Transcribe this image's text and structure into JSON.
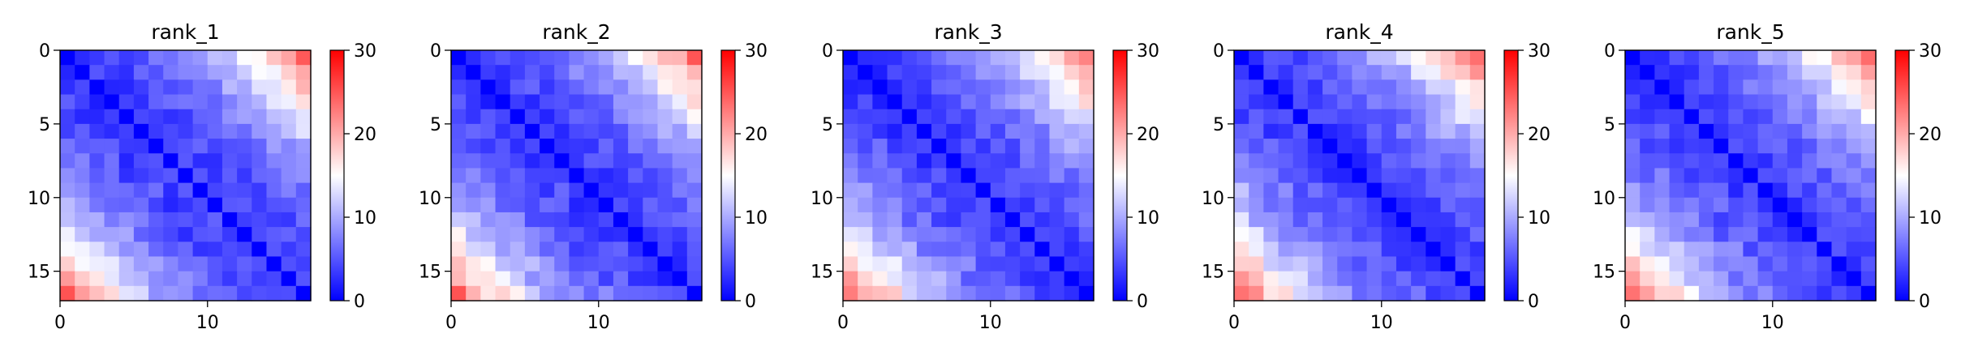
{
  "chart_data": [
    {
      "type": "heatmap",
      "title": "rank_1",
      "x_ticks": [
        "0",
        "10"
      ],
      "y_ticks": [
        "0",
        "5",
        "10",
        "15"
      ],
      "colorbar_ticks": [
        "0",
        "10",
        "20",
        "30"
      ],
      "colorscale": "bwr",
      "vmin": 0,
      "vmax": 30,
      "size": 17,
      "seed": 11
    },
    {
      "type": "heatmap",
      "title": "rank_2",
      "x_ticks": [
        "0",
        "10"
      ],
      "y_ticks": [
        "0",
        "5",
        "10",
        "15"
      ],
      "colorbar_ticks": [
        "0",
        "10",
        "20",
        "30"
      ],
      "colorscale": "bwr",
      "vmin": 0,
      "vmax": 30,
      "size": 17,
      "seed": 23
    },
    {
      "type": "heatmap",
      "title": "rank_3",
      "x_ticks": [
        "0",
        "10"
      ],
      "y_ticks": [
        "0",
        "5",
        "10",
        "15"
      ],
      "colorbar_ticks": [
        "0",
        "10",
        "20",
        "30"
      ],
      "colorscale": "bwr",
      "vmin": 0,
      "vmax": 30,
      "size": 17,
      "seed": 37
    },
    {
      "type": "heatmap",
      "title": "rank_4",
      "x_ticks": [
        "0",
        "10"
      ],
      "y_ticks": [
        "0",
        "5",
        "10",
        "15"
      ],
      "colorbar_ticks": [
        "0",
        "10",
        "20",
        "30"
      ],
      "colorscale": "bwr",
      "vmin": 0,
      "vmax": 30,
      "size": 17,
      "seed": 41
    },
    {
      "type": "heatmap",
      "title": "rank_5",
      "x_ticks": [
        "0",
        "10"
      ],
      "y_ticks": [
        "0",
        "5",
        "10",
        "15"
      ],
      "colorbar_ticks": [
        "0",
        "10",
        "20",
        "30"
      ],
      "colorscale": "bwr",
      "vmin": 0,
      "vmax": 30,
      "size": 17,
      "seed": 53
    }
  ],
  "colors": {
    "low": "#0000ff",
    "mid": "#ffffff",
    "high": "#ff0000",
    "axis": "#000000"
  }
}
